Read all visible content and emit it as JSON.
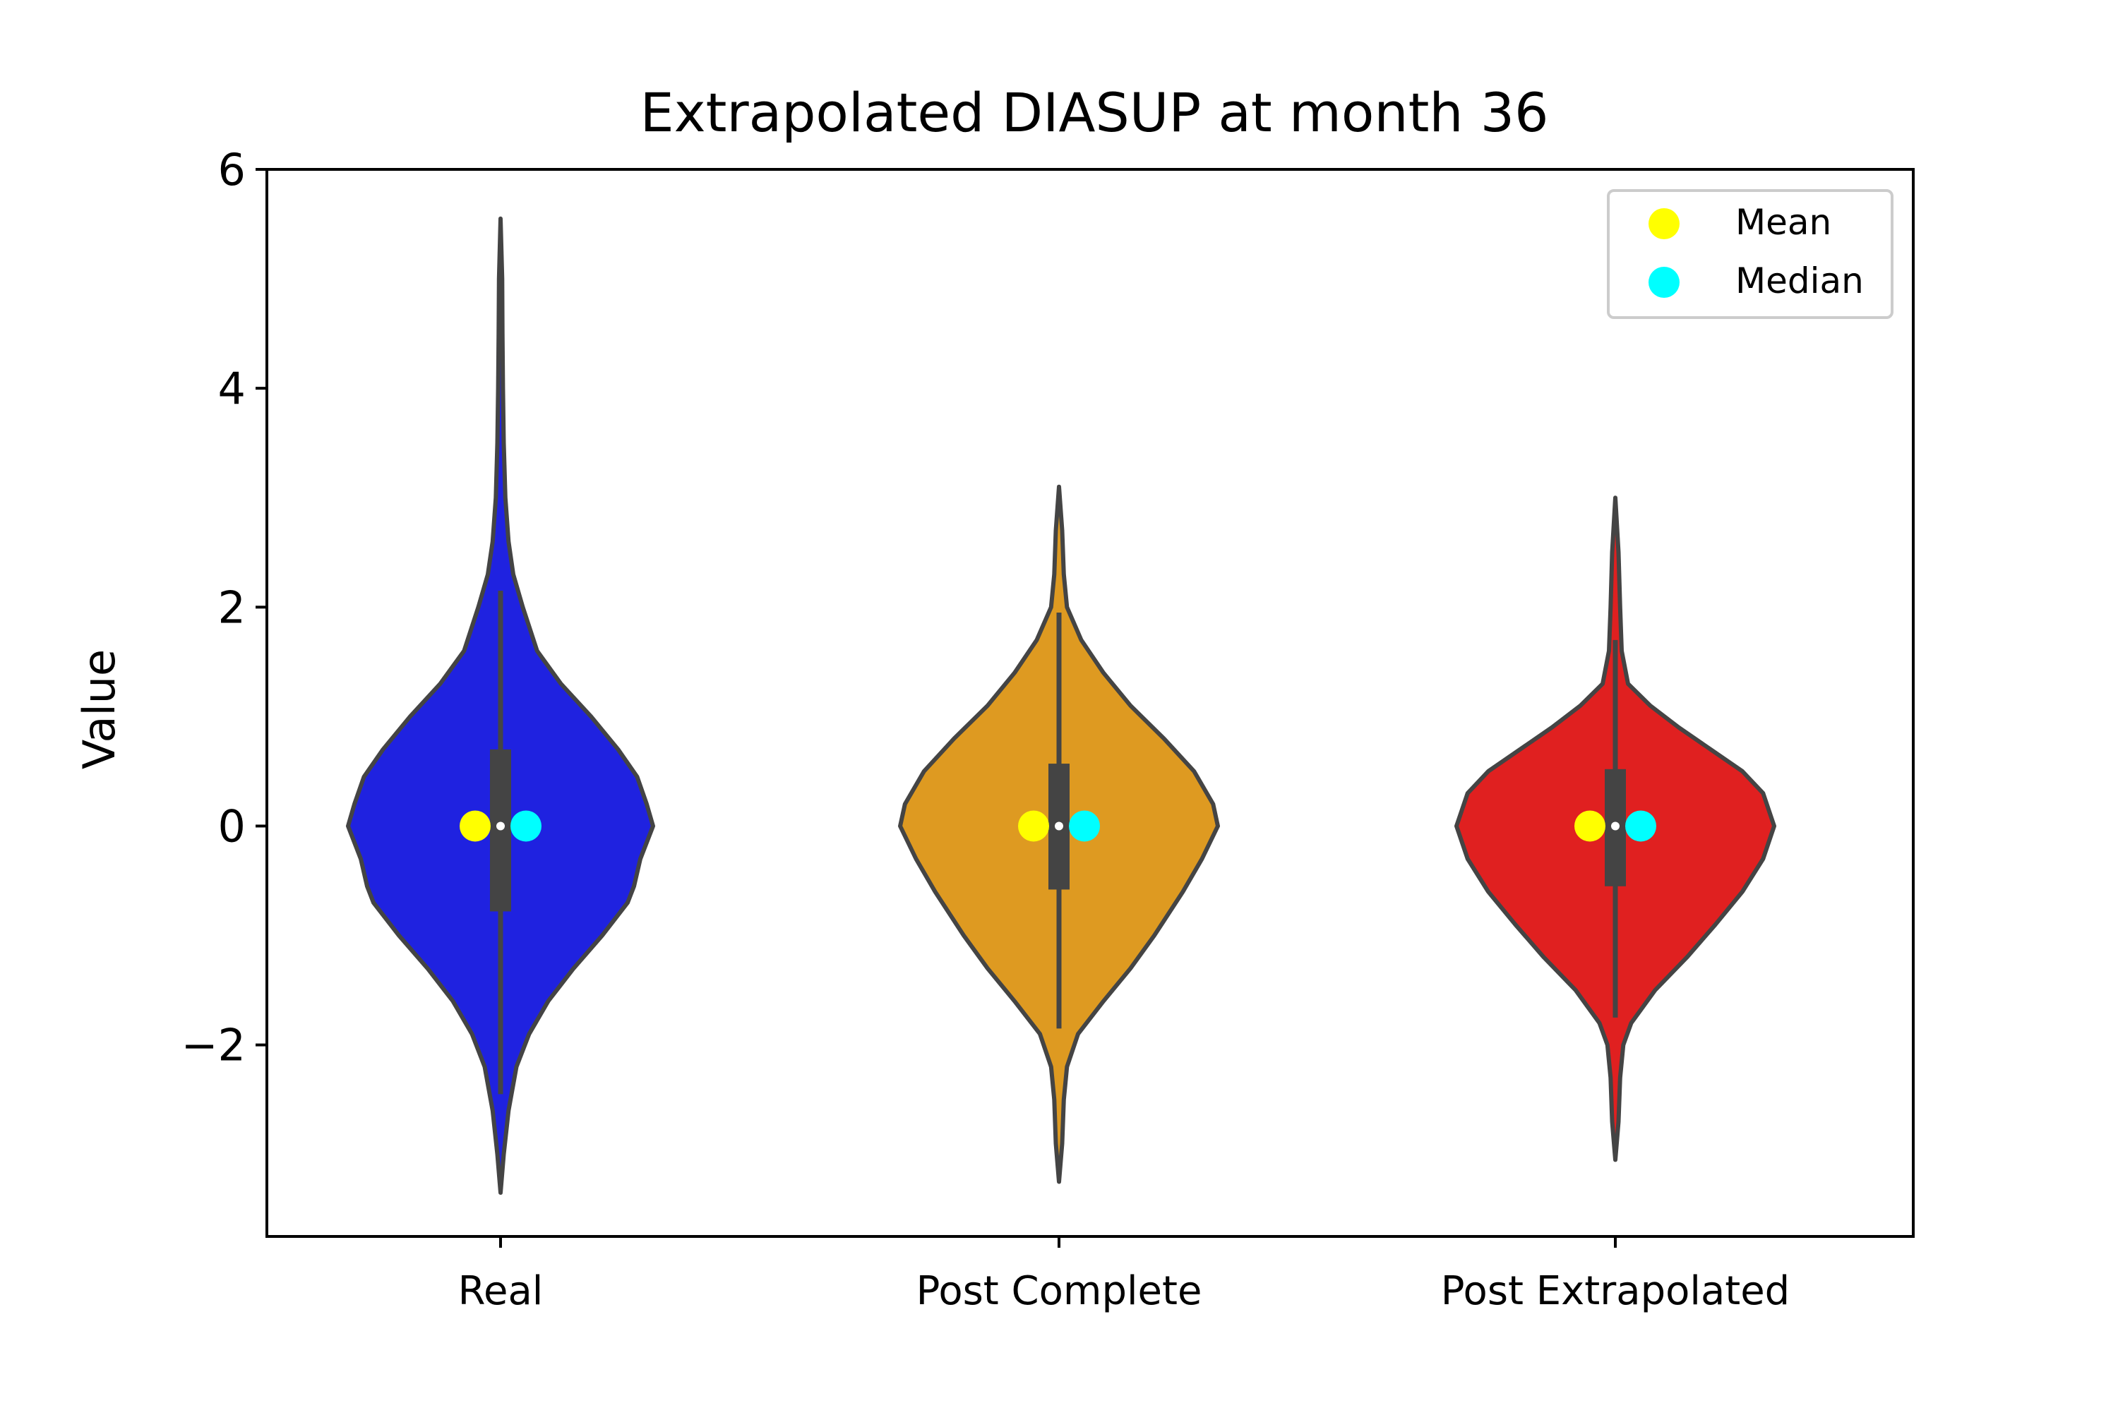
{
  "chart_data": {
    "type": "violin",
    "title": "Extrapolated DIASUP at month 36",
    "xlabel": "",
    "ylabel": "Value",
    "ylim": [
      -3.75,
      6.0
    ],
    "yticks": [
      -2,
      0,
      2,
      4,
      6
    ],
    "ytick_labels": [
      "−2",
      "0",
      "2",
      "4",
      "6"
    ],
    "categories": [
      "Real",
      "Post Complete",
      "Post Extrapolated"
    ],
    "legend": {
      "placement": "top-right",
      "entries": [
        {
          "label": "Mean",
          "color": "#ffff00"
        },
        {
          "label": "Median",
          "color": "#00ffff"
        }
      ]
    },
    "series": [
      {
        "category": "Real",
        "color": "#1f22e0",
        "min": -3.35,
        "max": 5.55,
        "q1": -0.78,
        "median": 0.0,
        "q3": 0.7,
        "whisker_low": -2.45,
        "whisker_high": 2.15,
        "mean": 0.0,
        "median_marker": 0.0,
        "density": [
          [
            -3.35,
            0.0
          ],
          [
            -3.0,
            0.02
          ],
          [
            -2.6,
            0.05
          ],
          [
            -2.2,
            0.1
          ],
          [
            -1.9,
            0.18
          ],
          [
            -1.6,
            0.3
          ],
          [
            -1.3,
            0.46
          ],
          [
            -1.0,
            0.64
          ],
          [
            -0.7,
            0.8
          ],
          [
            -0.55,
            0.84
          ],
          [
            -0.3,
            0.88
          ],
          [
            0.0,
            0.96
          ],
          [
            0.2,
            0.92
          ],
          [
            0.45,
            0.86
          ],
          [
            0.7,
            0.74
          ],
          [
            1.0,
            0.57
          ],
          [
            1.3,
            0.38
          ],
          [
            1.6,
            0.23
          ],
          [
            2.0,
            0.14
          ],
          [
            2.3,
            0.08
          ],
          [
            2.6,
            0.05
          ],
          [
            3.0,
            0.03
          ],
          [
            3.5,
            0.02
          ],
          [
            4.0,
            0.015
          ],
          [
            4.5,
            0.012
          ],
          [
            5.0,
            0.01
          ],
          [
            5.55,
            0.0
          ]
        ]
      },
      {
        "category": "Post Complete",
        "color": "#de9a21",
        "min": -3.25,
        "max": 3.1,
        "q1": -0.58,
        "median": 0.0,
        "q3": 0.57,
        "whisker_low": -1.85,
        "whisker_high": 1.95,
        "mean": 0.0,
        "median_marker": 0.0,
        "density": [
          [
            -3.25,
            0.0
          ],
          [
            -2.9,
            0.02
          ],
          [
            -2.5,
            0.03
          ],
          [
            -2.2,
            0.05
          ],
          [
            -1.9,
            0.12
          ],
          [
            -1.6,
            0.28
          ],
          [
            -1.3,
            0.45
          ],
          [
            -1.0,
            0.6
          ],
          [
            -0.6,
            0.78
          ],
          [
            -0.3,
            0.9
          ],
          [
            0.0,
            1.0
          ],
          [
            0.2,
            0.97
          ],
          [
            0.5,
            0.85
          ],
          [
            0.8,
            0.66
          ],
          [
            1.1,
            0.45
          ],
          [
            1.4,
            0.28
          ],
          [
            1.7,
            0.14
          ],
          [
            2.0,
            0.05
          ],
          [
            2.3,
            0.03
          ],
          [
            2.7,
            0.02
          ],
          [
            3.1,
            0.0
          ]
        ]
      },
      {
        "category": "Post Extrapolated",
        "color": "#e02020",
        "min": -3.05,
        "max": 3.0,
        "q1": -0.55,
        "median": 0.0,
        "q3": 0.52,
        "whisker_low": -1.75,
        "whisker_high": 1.7,
        "mean": 0.0,
        "median_marker": 0.0,
        "density": [
          [
            -3.05,
            0.0
          ],
          [
            -2.7,
            0.02
          ],
          [
            -2.3,
            0.03
          ],
          [
            -2.0,
            0.05
          ],
          [
            -1.8,
            0.1
          ],
          [
            -1.5,
            0.25
          ],
          [
            -1.2,
            0.45
          ],
          [
            -0.9,
            0.63
          ],
          [
            -0.6,
            0.8
          ],
          [
            -0.3,
            0.93
          ],
          [
            0.0,
            1.0
          ],
          [
            0.3,
            0.93
          ],
          [
            0.5,
            0.8
          ],
          [
            0.7,
            0.6
          ],
          [
            0.9,
            0.4
          ],
          [
            1.1,
            0.22
          ],
          [
            1.3,
            0.08
          ],
          [
            1.6,
            0.04
          ],
          [
            2.0,
            0.03
          ],
          [
            2.5,
            0.02
          ],
          [
            3.0,
            0.0
          ]
        ]
      }
    ]
  }
}
